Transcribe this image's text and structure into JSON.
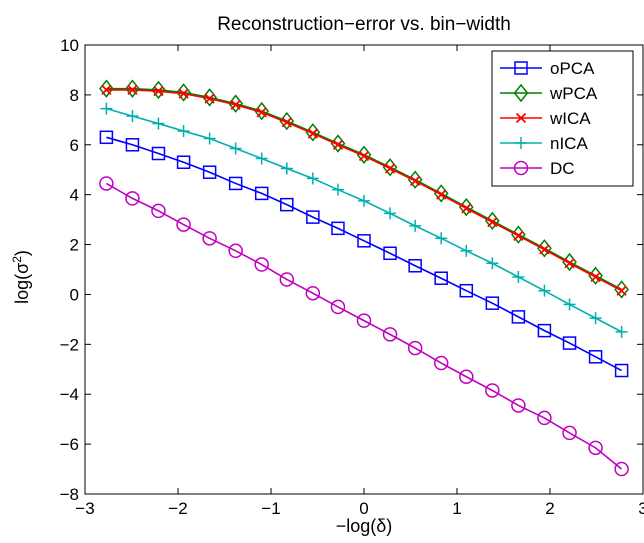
{
  "chart_data": {
    "type": "line",
    "title": "Reconstruction−error vs. bin−width",
    "xlabel": "−log(δ)",
    "ylabel_base": "log(σ",
    "ylabel_sup": "2",
    "ylabel_end": ")",
    "xlim": [
      -3,
      3
    ],
    "ylim": [
      -8,
      10
    ],
    "xticks": [
      -3,
      -2,
      -1,
      0,
      1,
      2,
      3
    ],
    "xtick_labels": [
      "−3",
      "−2",
      "−1",
      "0",
      "1",
      "2",
      "3"
    ],
    "yticks": [
      -8,
      -6,
      -4,
      -2,
      0,
      2,
      4,
      6,
      8,
      10
    ],
    "ytick_labels": [
      "−8",
      "−6",
      "−4",
      "−2",
      "0",
      "2",
      "4",
      "6",
      "8",
      "10"
    ],
    "grid": false,
    "legend_position": "top-right",
    "x": [
      -2.77,
      -2.49,
      -2.21,
      -1.94,
      -1.66,
      -1.38,
      -1.1,
      -0.83,
      -0.55,
      -0.28,
      0.0,
      0.28,
      0.55,
      0.83,
      1.1,
      1.38,
      1.66,
      1.94,
      2.21,
      2.49,
      2.77
    ],
    "series": [
      {
        "name": "oPCA",
        "color": "#0000ff",
        "marker": "square",
        "values": [
          6.3,
          6.0,
          5.65,
          5.3,
          4.9,
          4.45,
          4.05,
          3.6,
          3.1,
          2.65,
          2.15,
          1.65,
          1.15,
          0.65,
          0.15,
          -0.35,
          -0.9,
          -1.45,
          -1.95,
          -2.5,
          -3.05
        ]
      },
      {
        "name": "wPCA",
        "color": "#008000",
        "marker": "diamond",
        "values": [
          8.25,
          8.25,
          8.2,
          8.1,
          7.9,
          7.65,
          7.35,
          6.95,
          6.5,
          6.05,
          5.6,
          5.1,
          4.6,
          4.05,
          3.5,
          2.95,
          2.4,
          1.85,
          1.3,
          0.75,
          0.2
        ]
      },
      {
        "name": "wICA",
        "color": "#ff0000",
        "marker": "x",
        "values": [
          8.2,
          8.2,
          8.15,
          8.05,
          7.85,
          7.6,
          7.3,
          6.9,
          6.45,
          6.0,
          5.55,
          5.05,
          4.55,
          4.0,
          3.45,
          2.9,
          2.35,
          1.8,
          1.25,
          0.7,
          0.15
        ]
      },
      {
        "name": "nICA",
        "color": "#00b0b0",
        "marker": "plus",
        "values": [
          7.45,
          7.15,
          6.85,
          6.55,
          6.25,
          5.85,
          5.45,
          5.05,
          4.65,
          4.2,
          3.75,
          3.25,
          2.75,
          2.25,
          1.75,
          1.25,
          0.7,
          0.15,
          -0.4,
          -0.95,
          -1.5
        ]
      },
      {
        "name": "DC",
        "color": "#c000c0",
        "marker": "circle",
        "values": [
          4.45,
          3.85,
          3.35,
          2.8,
          2.25,
          1.75,
          1.2,
          0.6,
          0.05,
          -0.5,
          -1.05,
          -1.6,
          -2.15,
          -2.75,
          -3.3,
          -3.85,
          -4.45,
          -4.95,
          -5.55,
          -6.15,
          -7.0
        ]
      }
    ]
  }
}
